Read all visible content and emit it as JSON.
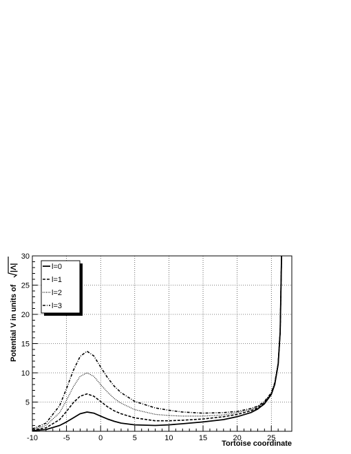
{
  "chart_data": {
    "type": "line",
    "title": "",
    "xlabel": "Tortoise coordinate",
    "ylabel": "Potential V in units of",
    "ylabel_suffix": "|Λ|",
    "xlim": [
      -10,
      28
    ],
    "ylim": [
      0,
      30
    ],
    "x_ticks": [
      -10,
      -5,
      0,
      5,
      10,
      15,
      20,
      25
    ],
    "y_ticks": [
      5,
      10,
      15,
      20,
      25,
      30
    ],
    "grid": true,
    "legend_position": "top-left",
    "series": [
      {
        "name": "l=0",
        "style": "solid",
        "x": [
          -10,
          -8,
          -6,
          -5,
          -4,
          -3,
          -2,
          -1,
          0,
          1,
          2,
          3,
          5,
          8,
          10,
          12,
          15,
          18,
          20,
          22,
          23,
          24,
          25,
          25.5,
          26,
          26.3,
          26.5
        ],
        "y": [
          0.1,
          0.3,
          1.0,
          1.6,
          2.3,
          3.0,
          3.3,
          3.1,
          2.6,
          2.1,
          1.7,
          1.4,
          1.1,
          1.0,
          1.1,
          1.3,
          1.6,
          2.0,
          2.5,
          3.2,
          3.8,
          4.7,
          6.3,
          8.0,
          11.5,
          17.0,
          30.0
        ]
      },
      {
        "name": "l=1",
        "style": "dashed",
        "x": [
          -10,
          -8,
          -6,
          -5,
          -4,
          -3,
          -2,
          -1,
          0,
          1,
          2,
          3,
          5,
          8,
          10,
          12,
          15,
          18,
          20,
          22,
          23,
          24,
          25,
          25.5,
          26,
          26.3,
          26.5
        ],
        "y": [
          0.2,
          0.6,
          2.0,
          3.4,
          4.9,
          6.0,
          6.4,
          6.0,
          5.1,
          4.2,
          3.5,
          3.0,
          2.3,
          1.8,
          1.8,
          1.9,
          2.1,
          2.5,
          2.9,
          3.5,
          4.0,
          4.9,
          6.4,
          8.1,
          11.5,
          17.0,
          30.0
        ]
      },
      {
        "name": "l=2",
        "style": "dotted",
        "x": [
          -10,
          -8,
          -6,
          -5,
          -4,
          -3,
          -2,
          -1,
          0,
          1,
          2,
          3,
          5,
          8,
          10,
          12,
          15,
          18,
          20,
          22,
          23,
          24,
          25,
          25.5,
          26,
          26.3,
          26.5
        ],
        "y": [
          0.3,
          1.0,
          3.2,
          5.3,
          7.6,
          9.4,
          10.0,
          9.4,
          8.0,
          6.7,
          5.6,
          4.8,
          3.7,
          2.9,
          2.7,
          2.6,
          2.6,
          2.8,
          3.2,
          3.7,
          4.2,
          5.0,
          6.5,
          8.2,
          11.5,
          17.0,
          30.0
        ]
      },
      {
        "name": "l=3",
        "style": "dashdot",
        "x": [
          -10,
          -8,
          -6,
          -5,
          -4,
          -3,
          -2,
          -1,
          0,
          1,
          2,
          3,
          5,
          8,
          10,
          12,
          15,
          18,
          20,
          22,
          23,
          24,
          25,
          25.5,
          26,
          26.3,
          26.5
        ],
        "y": [
          0.4,
          1.4,
          4.4,
          7.3,
          10.4,
          12.8,
          13.7,
          12.9,
          11.0,
          9.2,
          7.7,
          6.6,
          5.1,
          4.0,
          3.6,
          3.3,
          3.1,
          3.2,
          3.4,
          3.9,
          4.3,
          5.1,
          6.6,
          8.3,
          11.6,
          17.0,
          30.0
        ]
      }
    ]
  }
}
